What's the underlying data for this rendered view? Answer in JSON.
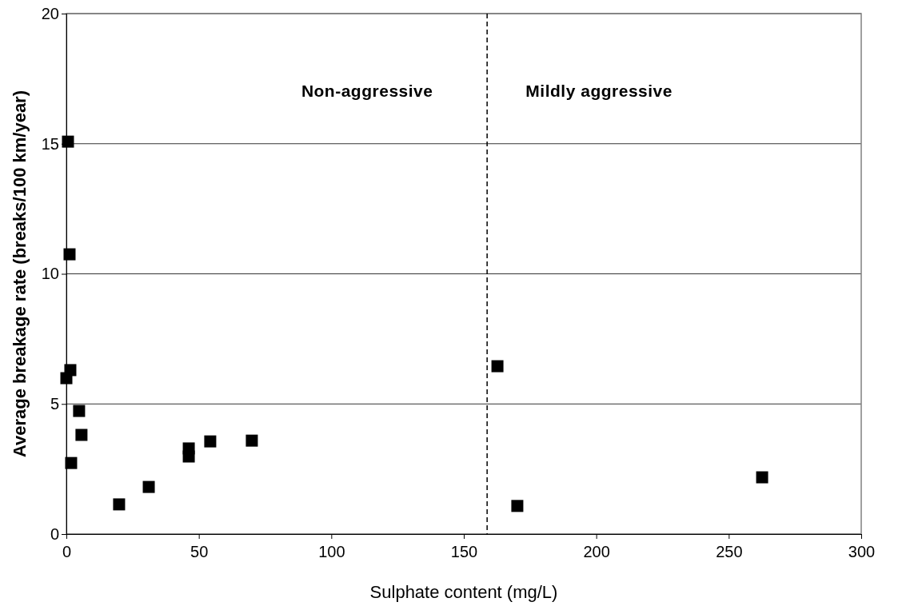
{
  "chart_data": {
    "type": "scatter",
    "xlabel": "Sulphate content (mg/L)",
    "ylabel": "Average breakage rate (breaks/100 km/year)",
    "x": [
      0.6,
      1.2,
      1.5,
      0,
      4.8,
      5.7,
      1.8,
      19.9,
      31.1,
      46.2,
      46.2,
      54.3,
      70,
      162.7,
      170.2,
      262.6
    ],
    "series": [
      {
        "color": "#000000",
        "values": [
          15.08,
          10.75,
          6.3,
          5.99,
          4.73,
          3.81,
          2.73,
          1.14,
          1.81,
          3.29,
          2.98,
          3.56,
          3.59,
          6.45,
          1.08,
          2.18
        ]
      }
    ],
    "marker": "square",
    "grid": "y",
    "xlim": [
      0,
      300
    ],
    "xticks": [
      0,
      50,
      100,
      150,
      200,
      250,
      300
    ],
    "ylim": [
      0,
      20
    ],
    "yticks": [
      0,
      5,
      10,
      15,
      20
    ],
    "ref_lines": [
      {
        "axis": "x",
        "value": 158.8,
        "color": "#000000",
        "line_style": "dashed"
      }
    ],
    "annotations": [
      "Non-aggressive",
      "Mildly aggressive"
    ]
  }
}
